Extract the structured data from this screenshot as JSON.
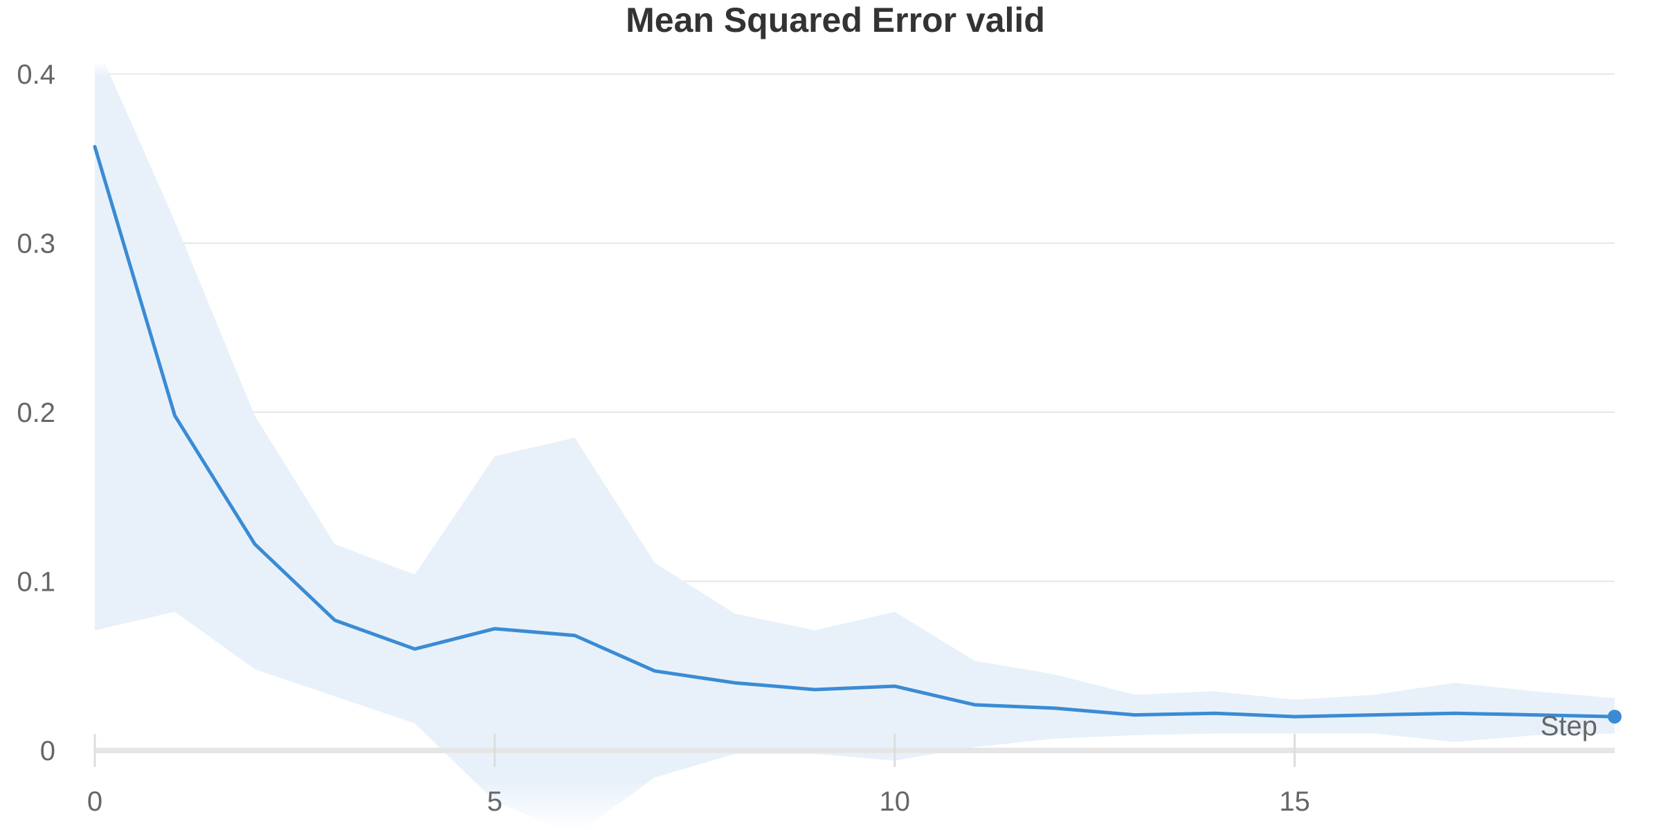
{
  "chart_data": {
    "type": "line",
    "title": "Mean Squared Error valid",
    "xlabel": "Step",
    "ylabel": "",
    "xlim": [
      0,
      19
    ],
    "ylim": [
      0,
      0.4
    ],
    "x_ticks": [
      0,
      5,
      10,
      15
    ],
    "y_ticks": [
      0,
      0.1,
      0.2,
      0.3,
      0.4
    ],
    "y_tick_labels": [
      "0",
      "0.1",
      "0.2",
      "0.3",
      "0.4"
    ],
    "grid": true,
    "legend": "none",
    "colors": {
      "line": "#3a8bd4",
      "band": "#e8f1fa"
    },
    "x": [
      0,
      1,
      2,
      3,
      4,
      5,
      6,
      7,
      8,
      9,
      10,
      11,
      12,
      13,
      14,
      15,
      16,
      17,
      18,
      19
    ],
    "series": [
      {
        "values": [
          0.357,
          0.198,
          0.122,
          0.077,
          0.06,
          0.072,
          0.068,
          0.047,
          0.04,
          0.036,
          0.038,
          0.027,
          0.025,
          0.021,
          0.022,
          0.02,
          0.021,
          0.022,
          0.021,
          0.02
        ],
        "upper": [
          0.42,
          0.313,
          0.198,
          0.122,
          0.104,
          0.174,
          0.185,
          0.111,
          0.081,
          0.071,
          0.082,
          0.053,
          0.045,
          0.033,
          0.035,
          0.03,
          0.033,
          0.04,
          0.035,
          0.031
        ],
        "lower": [
          0.071,
          0.082,
          0.048,
          0.032,
          0.016,
          -0.03,
          -0.05,
          -0.016,
          -0.002,
          -0.002,
          -0.006,
          0.002,
          0.007,
          0.009,
          0.01,
          0.01,
          0.01,
          0.005,
          0.009,
          0.01
        ]
      }
    ]
  }
}
